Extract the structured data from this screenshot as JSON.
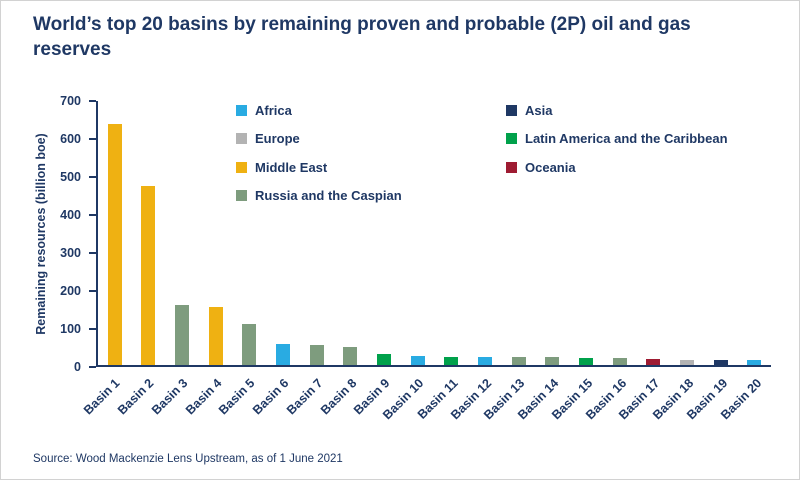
{
  "page": {
    "title": "World’s top 20 basins by remaining proven and probable (2P) oil and gas reserves",
    "source": "Source: Wood Mackenzie Lens Upstream, as of 1 June 2021"
  },
  "chart_data": {
    "type": "bar",
    "title": "World’s top 20 basins by remaining proven and probable (2P) oil and gas reserves",
    "xlabel": "",
    "ylabel": "Remaining resources (billion boe)",
    "ylim": [
      0,
      700
    ],
    "ytick_step": 100,
    "grid": false,
    "legend_position": "top-inside",
    "categories": [
      "Basin 1",
      "Basin 2",
      "Basin 3",
      "Basin 4",
      "Basin 5",
      "Basin 6",
      "Basin 7",
      "Basin 8",
      "Basin 9",
      "Basin 10",
      "Basin 11",
      "Basin 12",
      "Basin 13",
      "Basin 14",
      "Basin 15",
      "Basin 16",
      "Basin 17",
      "Basin 18",
      "Basin 19",
      "Basin 20"
    ],
    "values": [
      640,
      475,
      160,
      155,
      110,
      57,
      53,
      47,
      30,
      23,
      21,
      21,
      20,
      20,
      18,
      18,
      15,
      14,
      14,
      13
    ],
    "regions": [
      "Middle East",
      "Middle East",
      "Russia and the Caspian",
      "Middle East",
      "Russia and the Caspian",
      "Africa",
      "Russia and the Caspian",
      "Russia and the Caspian",
      "Latin America and the Caribbean",
      "Africa",
      "Latin America and the Caribbean",
      "Africa",
      "Russia and the Caspian",
      "Russia and the Caspian",
      "Latin America and the Caribbean",
      "Russia and the Caspian",
      "Oceania",
      "Europe",
      "Asia",
      "Africa"
    ],
    "region_colors": {
      "Africa": "#29ABE2",
      "Asia": "#1F3864",
      "Europe": "#B3B3B3",
      "Latin America and the Caribbean": "#00A14B",
      "Middle East": "#EFB112",
      "Oceania": "#9E1B32",
      "Russia and the Caspian": "#7E9C7E"
    },
    "legend_columns": [
      [
        "Africa",
        "Europe",
        "Middle East",
        "Russia and the Caspian"
      ],
      [
        "Asia",
        "Latin America and the Caribbean",
        "Oceania"
      ]
    ],
    "accent_text_color": "#1F3864"
  }
}
